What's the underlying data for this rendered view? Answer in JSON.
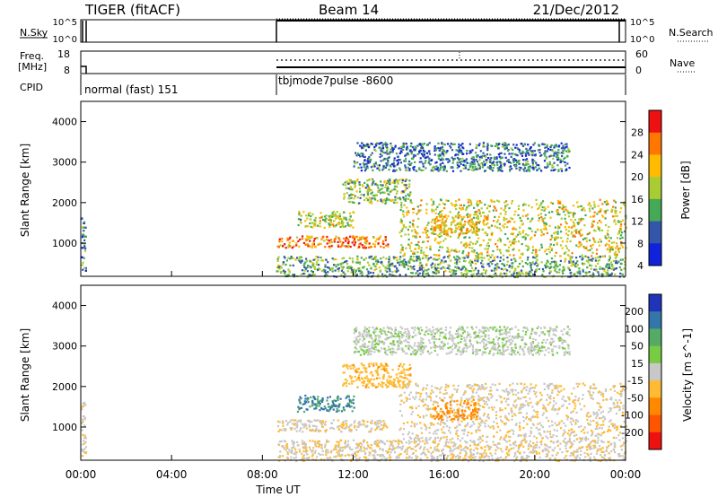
{
  "header": {
    "radar": "TIGER (fitACF)",
    "beam": "Beam 14",
    "date": "21/Dec/2012"
  },
  "status_panels": {
    "nsky": {
      "label": "N.Sky",
      "ticks": [
        "10^5",
        "10^0"
      ],
      "right_ticks": [
        "10^5",
        "10^0"
      ],
      "right_label": "N.Search"
    },
    "freq": {
      "label_line1": "Freq.",
      "label_line2": "[MHz]",
      "ticks": [
        "18",
        "8"
      ],
      "right_ticks": [
        "60",
        "0"
      ],
      "right_label": "Nave"
    },
    "cpid": {
      "label": "CPID",
      "programs": [
        "normal (fast) 151",
        "tbjmode7pulse -8600"
      ]
    }
  },
  "power_panel": {
    "ylabel": "Slant Range [km]",
    "yticks": [
      "4000",
      "3000",
      "2000",
      "1000"
    ],
    "colorbar_label": "Power [dB]",
    "colorbar_ticks": [
      "28",
      "24",
      "20",
      "16",
      "12",
      "8",
      "4"
    ],
    "colorbar_colors": [
      "#ee1111",
      "#ff7700",
      "#ffbb00",
      "#aacc33",
      "#44aa55",
      "#3355aa",
      "#1122dd"
    ]
  },
  "velocity_panel": {
    "ylabel": "Slant Range [km]",
    "yticks": [
      "4000",
      "3000",
      "2000",
      "1000"
    ],
    "colorbar_label": "Velocity [m s^-1]",
    "colorbar_ticks": [
      "200",
      "100",
      "50",
      "15",
      "-15",
      "-50",
      "-100",
      "-200"
    ],
    "colorbar_colors": [
      "#2233bb",
      "#3377aa",
      "#55aa66",
      "#77cc44",
      "#c8c8c8",
      "#ffbb33",
      "#ff8800",
      "#ff5500",
      "#ee1111"
    ]
  },
  "x_axis": {
    "label": "Time UT",
    "ticks": [
      "00:00",
      "04:00",
      "08:00",
      "12:00",
      "16:00",
      "20:00",
      "00:00"
    ]
  },
  "chart_data": {
    "type": "heatmap",
    "title": "TIGER (fitACF) Beam 14 21/Dec/2012",
    "xlabel": "Time UT",
    "ylabel": "Slant Range [km]",
    "xlim_hours": [
      0,
      24
    ],
    "ylim_km": [
      180,
      4500
    ],
    "panels": [
      "Power [dB]",
      "Velocity [m s^-1]"
    ],
    "power_range_db": [
      0,
      32
    ],
    "velocity_range": [
      -250,
      250
    ],
    "cpid_switch_time_hours": 8.6,
    "scatter_regions": [
      {
        "t_start": 0.0,
        "t_end": 0.2,
        "r_min": 250,
        "r_max": 1650,
        "power_db": 9,
        "velocity": -20
      },
      {
        "t_start": 8.6,
        "t_end": 24.0,
        "r_min": 180,
        "r_max": 700,
        "power_db": 12,
        "velocity": -20
      },
      {
        "t_start": 8.6,
        "t_end": 13.5,
        "r_min": 900,
        "r_max": 1200,
        "power_db": 24,
        "velocity": -20
      },
      {
        "t_start": 9.5,
        "t_end": 12.0,
        "r_min": 1400,
        "r_max": 1800,
        "power_db": 16,
        "velocity": 150
      },
      {
        "t_start": 11.5,
        "t_end": 14.5,
        "r_min": 2000,
        "r_max": 2600,
        "power_db": 14,
        "velocity": -60
      },
      {
        "t_start": 14.0,
        "t_end": 24.0,
        "r_min": 700,
        "r_max": 2100,
        "power_db": 18,
        "velocity": -20
      },
      {
        "t_start": 15.5,
        "t_end": 17.5,
        "r_min": 1200,
        "r_max": 1700,
        "power_db": 20,
        "velocity": -100
      },
      {
        "t_start": 12.0,
        "t_end": 21.5,
        "r_min": 2800,
        "r_max": 3500,
        "power_db": 8,
        "velocity": 15
      }
    ]
  }
}
